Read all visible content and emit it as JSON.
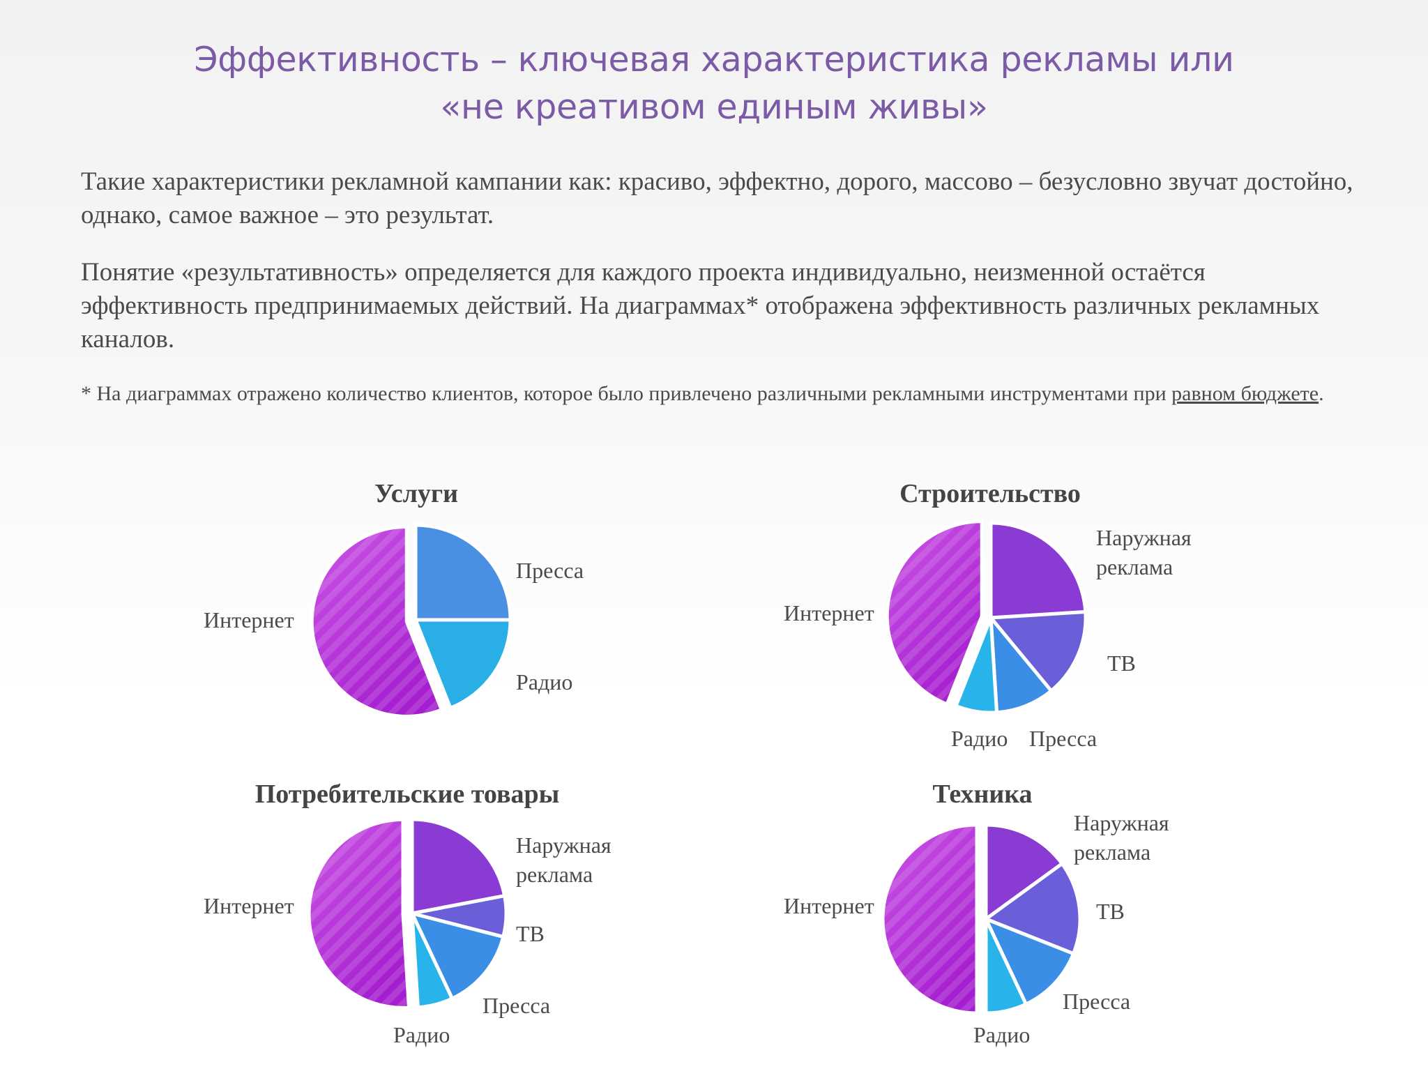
{
  "page": {
    "title_line1": "Эффективность – ключевая характеристика рекламы или",
    "title_line2": "«не креативом единым живы»",
    "paragraph1": "Такие характеристики рекламной кампании как: красиво, эффектно, дорого, массово – безусловно звучат достойно, однако, самое важное – это результат.",
    "paragraph2": "Понятие «результативность» определяется для каждого проекта индивидуально, неизменной остаётся эффективность предпринимаемых действий. На диаграммах* отображена эффективность различных рекламных каналов.",
    "note_prefix": "* На диаграммах отражено количество клиентов, которое было привлечено различными рекламными инструментами при ",
    "note_link": "равном бюджете",
    "note_suffix": "."
  },
  "colors": {
    "internet_light": "#cc55e6",
    "internet_dark": "#a51ecf",
    "press": "#4a90e2",
    "radio": "#29aee6",
    "outdoor": "#8a3bd4",
    "tv": "#6a5fd8",
    "press_mid": "#3b8ee6",
    "radio_light": "#28b4ea"
  },
  "chart_data": [
    {
      "type": "pie",
      "title": "Услуги",
      "slices": [
        {
          "label": "Пресса",
          "value": 25,
          "color": "#4a90e2"
        },
        {
          "label": "Радио",
          "value": 19,
          "color": "#29aee6"
        },
        {
          "label": "Интернет",
          "value": 56,
          "color": "internet",
          "exploded": true
        }
      ]
    },
    {
      "type": "pie",
      "title": "Строительство",
      "slices": [
        {
          "label": "Наружная реклама",
          "value": 24,
          "color": "#8a3bd4"
        },
        {
          "label": "ТВ",
          "value": 15,
          "color": "#6a5fd8"
        },
        {
          "label": "Пресса",
          "value": 10,
          "color": "#3b8ee6"
        },
        {
          "label": "Радио",
          "value": 7,
          "color": "#28b4ea"
        },
        {
          "label": "Интернет",
          "value": 44,
          "color": "internet",
          "exploded": true
        }
      ]
    },
    {
      "type": "pie",
      "title": "Потребительские товары",
      "slices": [
        {
          "label": "Наружная реклама",
          "value": 22,
          "color": "#8a3bd4"
        },
        {
          "label": "ТВ",
          "value": 7,
          "color": "#6a5fd8"
        },
        {
          "label": "Пресса",
          "value": 14,
          "color": "#3b8ee6"
        },
        {
          "label": "Радио",
          "value": 6,
          "color": "#28b4ea"
        },
        {
          "label": "Интернет",
          "value": 51,
          "color": "internet",
          "exploded": true
        }
      ]
    },
    {
      "type": "pie",
      "title": "Техника",
      "slices": [
        {
          "label": "Наружная реклама",
          "value": 15,
          "color": "#8a3bd4"
        },
        {
          "label": "ТВ",
          "value": 16,
          "color": "#6a5fd8"
        },
        {
          "label": "Пресса",
          "value": 12,
          "color": "#3b8ee6"
        },
        {
          "label": "Радио",
          "value": 7,
          "color": "#28b4ea"
        },
        {
          "label": "Интернет",
          "value": 50,
          "color": "internet",
          "exploded": true
        }
      ]
    }
  ]
}
